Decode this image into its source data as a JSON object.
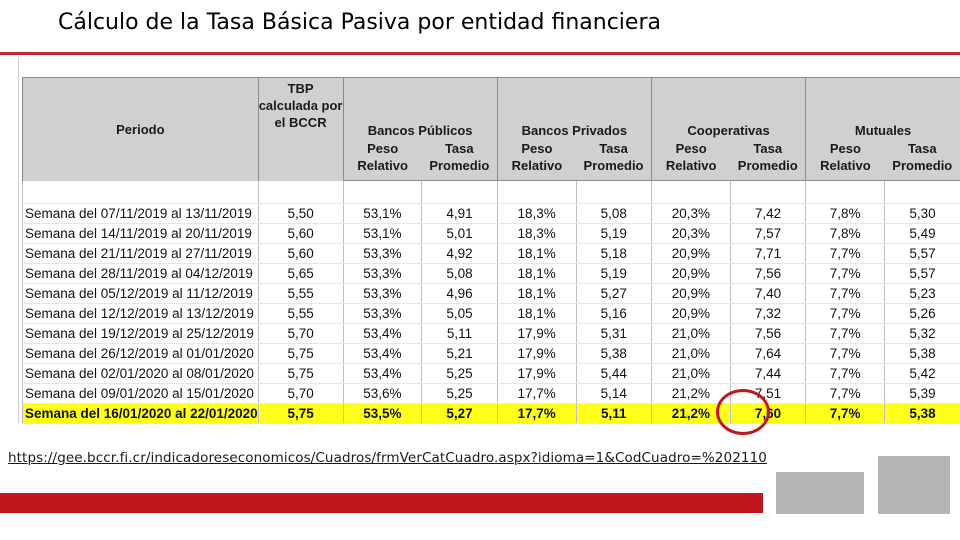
{
  "title": "Cálculo de la Tasa Básica Pasiva por entidad financiera",
  "table": {
    "header": {
      "period": "Periodo",
      "tbp_line1": "TBP",
      "tbp_line2": "calculada por",
      "tbp_line3": "el BCCR",
      "groups": [
        "Bancos Públicos",
        "Bancos Privados",
        "Cooperativas",
        "Mutuales"
      ],
      "weight_line1": "Peso",
      "weight_line2": "Relativo",
      "rate_line1": "Tasa",
      "rate_line2": "Promedio"
    },
    "rows": [
      [
        "Semana del 07/11/2019 al 13/11/2019",
        "5,50",
        "53,1%",
        "4,91",
        "18,3%",
        "5,08",
        "20,3%",
        "7,42",
        "7,8%",
        "5,30"
      ],
      [
        "Semana del 14/11/2019 al 20/11/2019",
        "5,60",
        "53,1%",
        "5,01",
        "18,3%",
        "5,19",
        "20,3%",
        "7,57",
        "7,8%",
        "5,49"
      ],
      [
        "Semana del 21/11/2019 al 27/11/2019",
        "5,60",
        "53,3%",
        "4,92",
        "18,1%",
        "5,18",
        "20,9%",
        "7,71",
        "7,7%",
        "5,57"
      ],
      [
        "Semana del 28/11/2019 al 04/12/2019",
        "5,65",
        "53,3%",
        "5,08",
        "18,1%",
        "5,19",
        "20,9%",
        "7,56",
        "7,7%",
        "5,57"
      ],
      [
        "Semana del 05/12/2019 al 11/12/2019",
        "5,55",
        "53,3%",
        "4,96",
        "18,1%",
        "5,27",
        "20,9%",
        "7,40",
        "7,7%",
        "5,23"
      ],
      [
        "Semana del 12/12/2019 al 13/12/2019",
        "5,55",
        "53,3%",
        "5,05",
        "18,1%",
        "5,16",
        "20,9%",
        "7,32",
        "7,7%",
        "5,26"
      ],
      [
        "Semana del 19/12/2019 al 25/12/2019",
        "5,70",
        "53,4%",
        "5,11",
        "17,9%",
        "5,31",
        "21,0%",
        "7,56",
        "7,7%",
        "5,32"
      ],
      [
        "Semana del 26/12/2019 al 01/01/2020",
        "5,75",
        "53,4%",
        "5,21",
        "17,9%",
        "5,38",
        "21,0%",
        "7,64",
        "7,7%",
        "5,38"
      ],
      [
        "Semana del 02/01/2020 al 08/01/2020",
        "5,75",
        "53,4%",
        "5,25",
        "17,9%",
        "5,44",
        "21,0%",
        "7,44",
        "7,7%",
        "5,42"
      ],
      [
        "Semana del 09/01/2020 al 15/01/2020",
        "5,70",
        "53,6%",
        "5,25",
        "17,7%",
        "5,14",
        "21,2%",
        "7,51",
        "7,7%",
        "5,39"
      ],
      [
        "Semana del 16/01/2020 al 22/01/2020",
        "5,75",
        "53,5%",
        "5,27",
        "17,7%",
        "5,11",
        "21,2%",
        "7,60",
        "7,7%",
        "5,38"
      ]
    ]
  },
  "source_url": "https://gee.bccr.fi.cr/indicadoreseconomicos/Cuadros/frmVerCatCuadro.aspx?idioma=1&CodCuadro=%202110",
  "colors": {
    "accent_red": "#c0161c",
    "highlight_yellow": "#ffff1a",
    "header_gray": "#d0d0d0"
  }
}
